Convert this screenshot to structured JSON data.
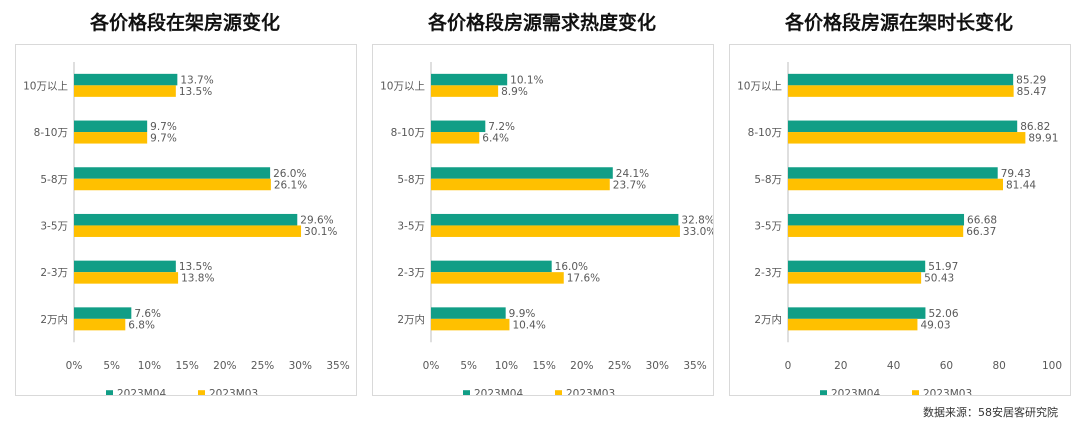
{
  "source_text": "数据来源：58安居客研究院",
  "colors": {
    "series_a": "#119E86",
    "series_b": "#FFC000",
    "axis": "#bfbfbf",
    "label": "#595959"
  },
  "chart_data": [
    {
      "type": "bar",
      "orientation": "horizontal",
      "title": "各价格段在架房源变化",
      "categories": [
        "10万以上",
        "8-10万",
        "5-8万",
        "3-5万",
        "2-3万",
        "2万内"
      ],
      "series": [
        {
          "name": "2023M04",
          "values": [
            13.7,
            9.7,
            26.0,
            29.6,
            13.5,
            7.6
          ]
        },
        {
          "name": "2023M03",
          "values": [
            13.5,
            9.7,
            26.1,
            30.1,
            13.8,
            6.8
          ]
        }
      ],
      "value_labels": [
        [
          "13.7%",
          "9.7%",
          "26.0%",
          "29.6%",
          "13.5%",
          "7.6%"
        ],
        [
          "13.5%",
          "9.7%",
          "26.1%",
          "30.1%",
          "13.8%",
          "6.8%"
        ]
      ],
      "xlim": [
        0,
        35
      ],
      "ticks": [
        0,
        5,
        10,
        15,
        20,
        25,
        30,
        35
      ],
      "tick_labels": [
        "0%",
        "5%",
        "10%",
        "15%",
        "20%",
        "25%",
        "30%",
        "35%"
      ],
      "legend": "bottom",
      "grid": false
    },
    {
      "type": "bar",
      "orientation": "horizontal",
      "title": "各价格段房源需求热度变化",
      "categories": [
        "10万以上",
        "8-10万",
        "5-8万",
        "3-5万",
        "2-3万",
        "2万内"
      ],
      "series": [
        {
          "name": "2023M04",
          "values": [
            10.1,
            7.2,
            24.1,
            32.8,
            16.0,
            9.9
          ]
        },
        {
          "name": "2023M03",
          "values": [
            8.9,
            6.4,
            23.7,
            33.0,
            17.6,
            10.4
          ]
        }
      ],
      "value_labels": [
        [
          "10.1%",
          "7.2%",
          "24.1%",
          "32.8%",
          "16.0%",
          "9.9%"
        ],
        [
          "8.9%",
          "6.4%",
          "23.7%",
          "33.0%",
          "17.6%",
          "10.4%"
        ]
      ],
      "xlim": [
        0,
        35
      ],
      "ticks": [
        0,
        5,
        10,
        15,
        20,
        25,
        30,
        35
      ],
      "tick_labels": [
        "0%",
        "5%",
        "10%",
        "15%",
        "20%",
        "25%",
        "30%",
        "35%"
      ],
      "legend": "bottom",
      "grid": false
    },
    {
      "type": "bar",
      "orientation": "horizontal",
      "title": "各价格段房源在架时长变化",
      "categories": [
        "10万以上",
        "8-10万",
        "5-8万",
        "3-5万",
        "2-3万",
        "2万内"
      ],
      "series": [
        {
          "name": "2023M04",
          "values": [
            85.29,
            86.82,
            79.43,
            66.68,
            51.97,
            52.06
          ]
        },
        {
          "name": "2023M03",
          "values": [
            85.47,
            89.91,
            81.44,
            66.37,
            50.43,
            49.03
          ]
        }
      ],
      "value_labels": [
        [
          "85.29",
          "86.82",
          "79.43",
          "66.68",
          "51.97",
          "52.06"
        ],
        [
          "85.47",
          "89.91",
          "81.44",
          "66.37",
          "50.43",
          "49.03"
        ]
      ],
      "xlim": [
        0,
        100
      ],
      "ticks": [
        0,
        20,
        40,
        60,
        80,
        100
      ],
      "tick_labels": [
        "0",
        "20",
        "40",
        "60",
        "80",
        "100"
      ],
      "legend": "bottom",
      "grid": false
    }
  ]
}
